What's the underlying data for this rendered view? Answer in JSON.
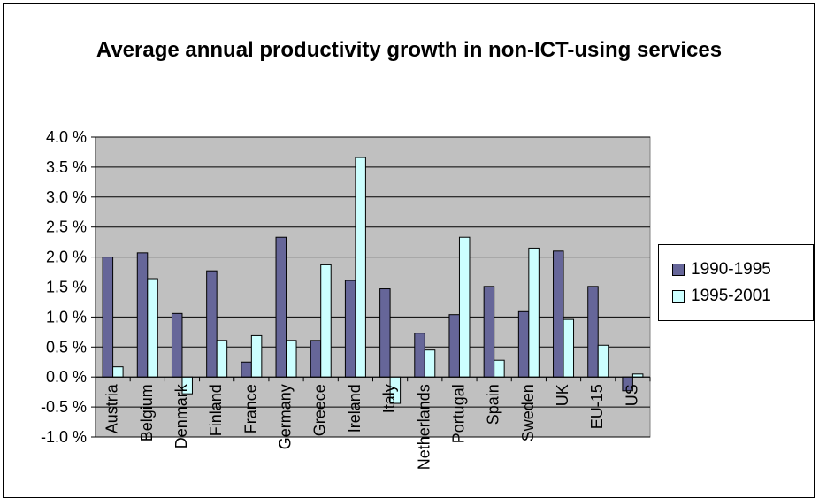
{
  "chart_data": {
    "type": "bar",
    "title": "Average annual productivity growth in non-ICT-using services",
    "xlabel": "",
    "ylabel": "",
    "categories": [
      "Austria",
      "Belgium",
      "Denmark",
      "Finland",
      "France",
      "Germany",
      "Greece",
      "Ireland",
      "Italy",
      "Netherlands",
      "Portugal",
      "Spain",
      "Sweden",
      "UK",
      "EU-15",
      "US"
    ],
    "series": [
      {
        "name": "1990-1995",
        "color": "#666699",
        "values": [
          2.0,
          2.07,
          1.06,
          1.77,
          0.25,
          2.33,
          0.61,
          1.61,
          1.47,
          0.73,
          1.04,
          1.51,
          1.09,
          2.1,
          1.51,
          -0.23
        ]
      },
      {
        "name": "1995-2001",
        "color": "#ccffff",
        "values": [
          0.17,
          1.64,
          -0.28,
          0.61,
          0.69,
          0.61,
          1.87,
          3.66,
          -0.44,
          0.45,
          2.33,
          0.28,
          2.15,
          0.96,
          0.53,
          0.05
        ]
      }
    ],
    "ylim": [
      -1.0,
      4.0
    ],
    "yticks": [
      "4.0 %",
      "3.5 %",
      "3.0 %",
      "2.5 %",
      "2.0 %",
      "1.5 %",
      "1.0 %",
      "0.5 %",
      "0.0 %",
      "-0.5 %",
      "-1.0 %"
    ],
    "grid": true,
    "plot_background": "#c0c0c0",
    "legend_position": "right"
  }
}
